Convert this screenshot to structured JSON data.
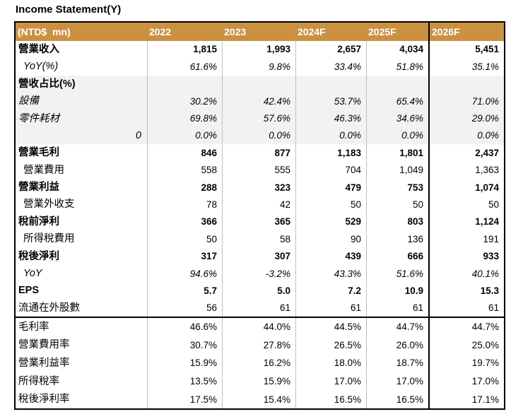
{
  "title": "Income Statement(Y)",
  "colors": {
    "header_bg": "#CA9142",
    "header_text": "#FFFFFF",
    "shaded_row_bg": "#F2F2F2",
    "grid_line": "#BFBFBF",
    "section_border": "#000000"
  },
  "table": {
    "columns": [
      "(NTD$  mn)",
      "2022",
      "2023",
      "2024F",
      "2025F",
      "2026F"
    ],
    "rows": [
      {
        "label": "營業收入",
        "values": [
          "1,815",
          "1,993",
          "2,657",
          "4,034",
          "5,451"
        ],
        "bold": true
      },
      {
        "label": "YoY(%)",
        "values": [
          "61.6%",
          "9.8%",
          "33.4%",
          "51.8%",
          "35.1%"
        ],
        "italic": true,
        "indent": true
      },
      {
        "label": "營收占比(%)",
        "values": [
          "",
          "",
          "",
          "",
          ""
        ],
        "bold": true,
        "shaded": true
      },
      {
        "label": "設備",
        "values": [
          "30.2%",
          "42.4%",
          "53.7%",
          "65.4%",
          "71.0%"
        ],
        "italic": true,
        "shaded": true
      },
      {
        "label": "零件耗材",
        "values": [
          "69.8%",
          "57.6%",
          "46.3%",
          "34.6%",
          "29.0%"
        ],
        "italic": true,
        "shaded": true
      },
      {
        "label": "0",
        "values": [
          "0.0%",
          "0.0%",
          "0.0%",
          "0.0%",
          "0.0%"
        ],
        "italic": true,
        "shaded": true,
        "label_right": true
      },
      {
        "label": "營業毛利",
        "values": [
          "846",
          "877",
          "1,183",
          "1,801",
          "2,437"
        ],
        "bold": true
      },
      {
        "label": "營業費用",
        "values": [
          "558",
          "555",
          "704",
          "1,049",
          "1,363"
        ],
        "indent": true
      },
      {
        "label": "營業利益",
        "values": [
          "288",
          "323",
          "479",
          "753",
          "1,074"
        ],
        "bold": true
      },
      {
        "label": "營業外收支",
        "values": [
          "78",
          "42",
          "50",
          "50",
          "50"
        ],
        "indent": true
      },
      {
        "label": "稅前淨利",
        "values": [
          "366",
          "365",
          "529",
          "803",
          "1,124"
        ],
        "bold": true
      },
      {
        "label": "所得稅費用",
        "values": [
          "50",
          "58",
          "90",
          "136",
          "191"
        ],
        "indent": true
      },
      {
        "label": "稅後淨利",
        "values": [
          "317",
          "307",
          "439",
          "666",
          "933"
        ],
        "bold": true
      },
      {
        "label": "YoY",
        "values": [
          "94.6%",
          "-3.2%",
          "43.3%",
          "51.6%",
          "40.1%"
        ],
        "italic": true,
        "indent": true
      },
      {
        "label": "EPS",
        "values": [
          "5.7",
          "5.0",
          "7.2",
          "10.9",
          "15.3"
        ],
        "bold": true
      },
      {
        "label": "流通在外股數",
        "values": [
          "56",
          "61",
          "61",
          "61",
          "61"
        ]
      },
      {
        "label": "毛利率",
        "values": [
          "46.6%",
          "44.0%",
          "44.5%",
          "44.7%",
          "44.7%"
        ],
        "section2": true,
        "sep": true
      },
      {
        "label": "營業費用率",
        "values": [
          "30.7%",
          "27.8%",
          "26.5%",
          "26.0%",
          "25.0%"
        ],
        "section2": true
      },
      {
        "label": "營業利益率",
        "values": [
          "15.9%",
          "16.2%",
          "18.0%",
          "18.7%",
          "19.7%"
        ],
        "section2": true
      },
      {
        "label": "所得稅率",
        "values": [
          "13.5%",
          "15.9%",
          "17.0%",
          "17.0%",
          "17.0%"
        ],
        "section2": true
      },
      {
        "label": "稅後淨利率",
        "values": [
          "17.5%",
          "15.4%",
          "16.5%",
          "16.5%",
          "17.1%"
        ],
        "section2": true
      }
    ]
  }
}
